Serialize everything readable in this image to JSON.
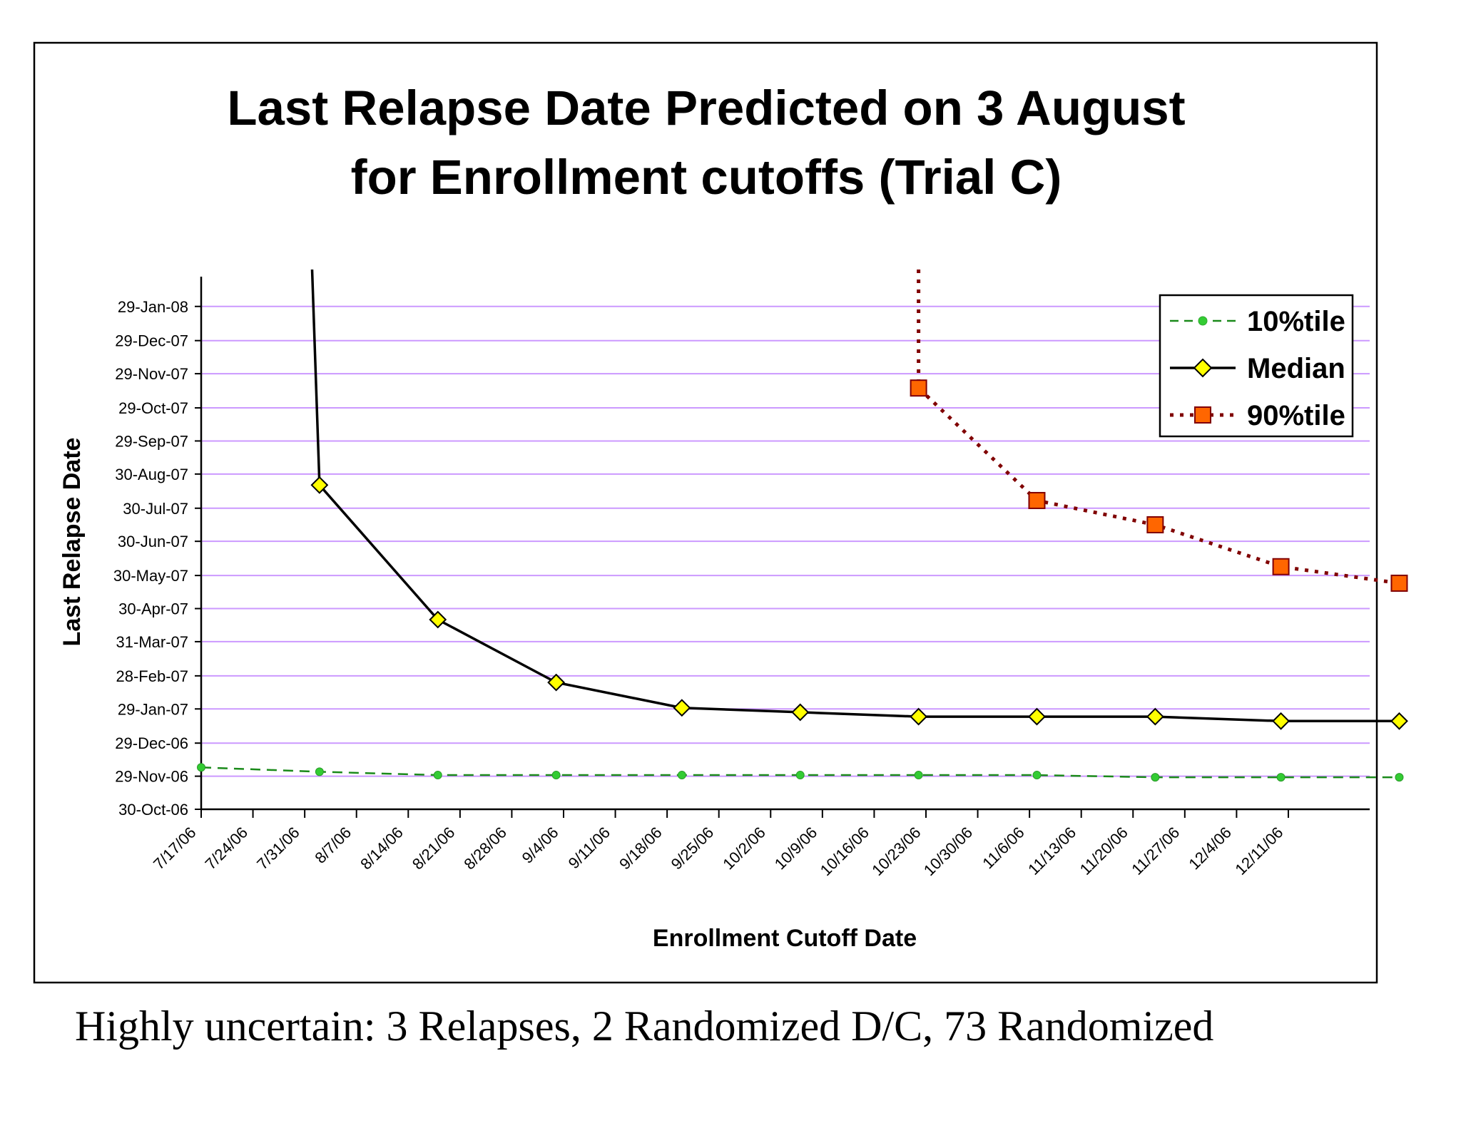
{
  "caption": "Highly uncertain: 3 Relapses, 2 Randomized D/C, 73 Randomized",
  "chart_data": {
    "type": "line",
    "title": "Last Relapse Date Predicted on 3 August",
    "subtitle": "for Enrollment cutoffs (Trial C)",
    "xlabel": "Enrollment Cutoff Date",
    "ylabel": "Last Relapse Date",
    "x_ticks": [
      "7/17/06",
      "7/24/06",
      "7/31/06",
      "8/7/06",
      "8/14/06",
      "8/21/06",
      "8/28/06",
      "9/4/06",
      "9/11/06",
      "9/18/06",
      "9/25/06",
      "10/2/06",
      "10/9/06",
      "10/16/06",
      "10/23/06",
      "10/30/06",
      "11/6/06",
      "11/13/06",
      "11/20/06",
      "11/27/06",
      "12/4/06",
      "12/11/06"
    ],
    "y_ticks": [
      "30-Oct-06",
      "29-Nov-06",
      "29-Dec-06",
      "29-Jan-07",
      "28-Feb-07",
      "31-Mar-07",
      "30-Apr-07",
      "30-May-07",
      "30-Jun-07",
      "30-Jul-07",
      "30-Aug-07",
      "29-Sep-07",
      "29-Oct-07",
      "29-Nov-07",
      "29-Dec-07",
      "29-Jan-08"
    ],
    "xlim": [
      "2006-07-17",
      "2006-12-22"
    ],
    "ylim": [
      "2006-10-30",
      "2008-02-25"
    ],
    "grid": true,
    "legend_position": "top-right",
    "series": [
      {
        "name": "10%tile",
        "color": "#1a8a1a",
        "marker_color": "#33cc33",
        "style": "dashed",
        "marker": "circle",
        "points": [
          [
            "2006-07-17",
            "2006-12-07"
          ],
          [
            "2006-08-02",
            "2006-12-03"
          ],
          [
            "2006-08-18",
            "2006-11-30"
          ],
          [
            "2006-09-03",
            "2006-11-30"
          ],
          [
            "2006-09-20",
            "2006-11-30"
          ],
          [
            "2006-10-06",
            "2006-11-30"
          ],
          [
            "2006-10-22",
            "2006-11-30"
          ],
          [
            "2006-11-07",
            "2006-11-30"
          ],
          [
            "2006-11-23",
            "2006-11-28"
          ],
          [
            "2006-12-10",
            "2006-11-28"
          ],
          [
            "2006-12-26",
            "2006-11-28"
          ]
        ]
      },
      {
        "name": "Median",
        "color": "#000000",
        "marker_color": "#ffff00",
        "style": "solid",
        "marker": "diamond",
        "lead_in": [
          "2006-08-01",
          "2008-03-20"
        ],
        "points": [
          [
            "2006-08-02",
            "2007-08-20"
          ],
          [
            "2006-08-18",
            "2007-04-20"
          ],
          [
            "2006-09-03",
            "2007-02-22"
          ],
          [
            "2006-09-20",
            "2007-01-30"
          ],
          [
            "2006-10-06",
            "2007-01-26"
          ],
          [
            "2006-10-22",
            "2007-01-22"
          ],
          [
            "2006-11-07",
            "2007-01-22"
          ],
          [
            "2006-11-23",
            "2007-01-22"
          ],
          [
            "2006-12-10",
            "2007-01-18"
          ],
          [
            "2006-12-26",
            "2007-01-18"
          ]
        ]
      },
      {
        "name": "90%tile",
        "color": "#800000",
        "marker_color": "#ff6600",
        "style": "dotted",
        "marker": "square",
        "lead_in": [
          "2006-10-22",
          "2008-03-20"
        ],
        "points": [
          [
            "2006-10-22",
            "2007-11-16"
          ],
          [
            "2006-11-07",
            "2007-08-06"
          ],
          [
            "2006-11-23",
            "2007-07-15"
          ],
          [
            "2006-12-10",
            "2007-06-07"
          ],
          [
            "2006-12-26",
            "2007-05-23"
          ]
        ]
      }
    ]
  }
}
